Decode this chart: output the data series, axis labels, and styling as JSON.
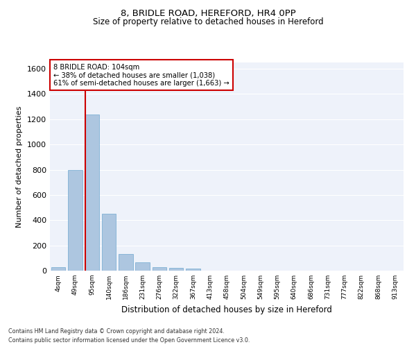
{
  "title1": "8, BRIDLE ROAD, HEREFORD, HR4 0PP",
  "title2": "Size of property relative to detached houses in Hereford",
  "xlabel": "Distribution of detached houses by size in Hereford",
  "ylabel": "Number of detached properties",
  "categories": [
    "4sqm",
    "49sqm",
    "95sqm",
    "140sqm",
    "186sqm",
    "231sqm",
    "276sqm",
    "322sqm",
    "367sqm",
    "413sqm",
    "458sqm",
    "504sqm",
    "549sqm",
    "595sqm",
    "640sqm",
    "686sqm",
    "731sqm",
    "777sqm",
    "822sqm",
    "868sqm",
    "913sqm"
  ],
  "values": [
    25,
    800,
    1240,
    450,
    130,
    65,
    28,
    20,
    15,
    0,
    0,
    0,
    0,
    0,
    0,
    0,
    0,
    0,
    0,
    0,
    0
  ],
  "bar_color": "#adc6e0",
  "bar_edgecolor": "#6fa8d0",
  "vline_color": "#cc0000",
  "annotation_text": "8 BRIDLE ROAD: 104sqm\n← 38% of detached houses are smaller (1,038)\n61% of semi-detached houses are larger (1,663) →",
  "annotation_box_color": "white",
  "annotation_box_edgecolor": "#cc0000",
  "ylim": [
    0,
    1650
  ],
  "yticks": [
    0,
    200,
    400,
    600,
    800,
    1000,
    1200,
    1400,
    1600
  ],
  "background_color": "#eef2fa",
  "grid_color": "white",
  "footer_line1": "Contains HM Land Registry data © Crown copyright and database right 2024.",
  "footer_line2": "Contains public sector information licensed under the Open Government Licence v3.0."
}
